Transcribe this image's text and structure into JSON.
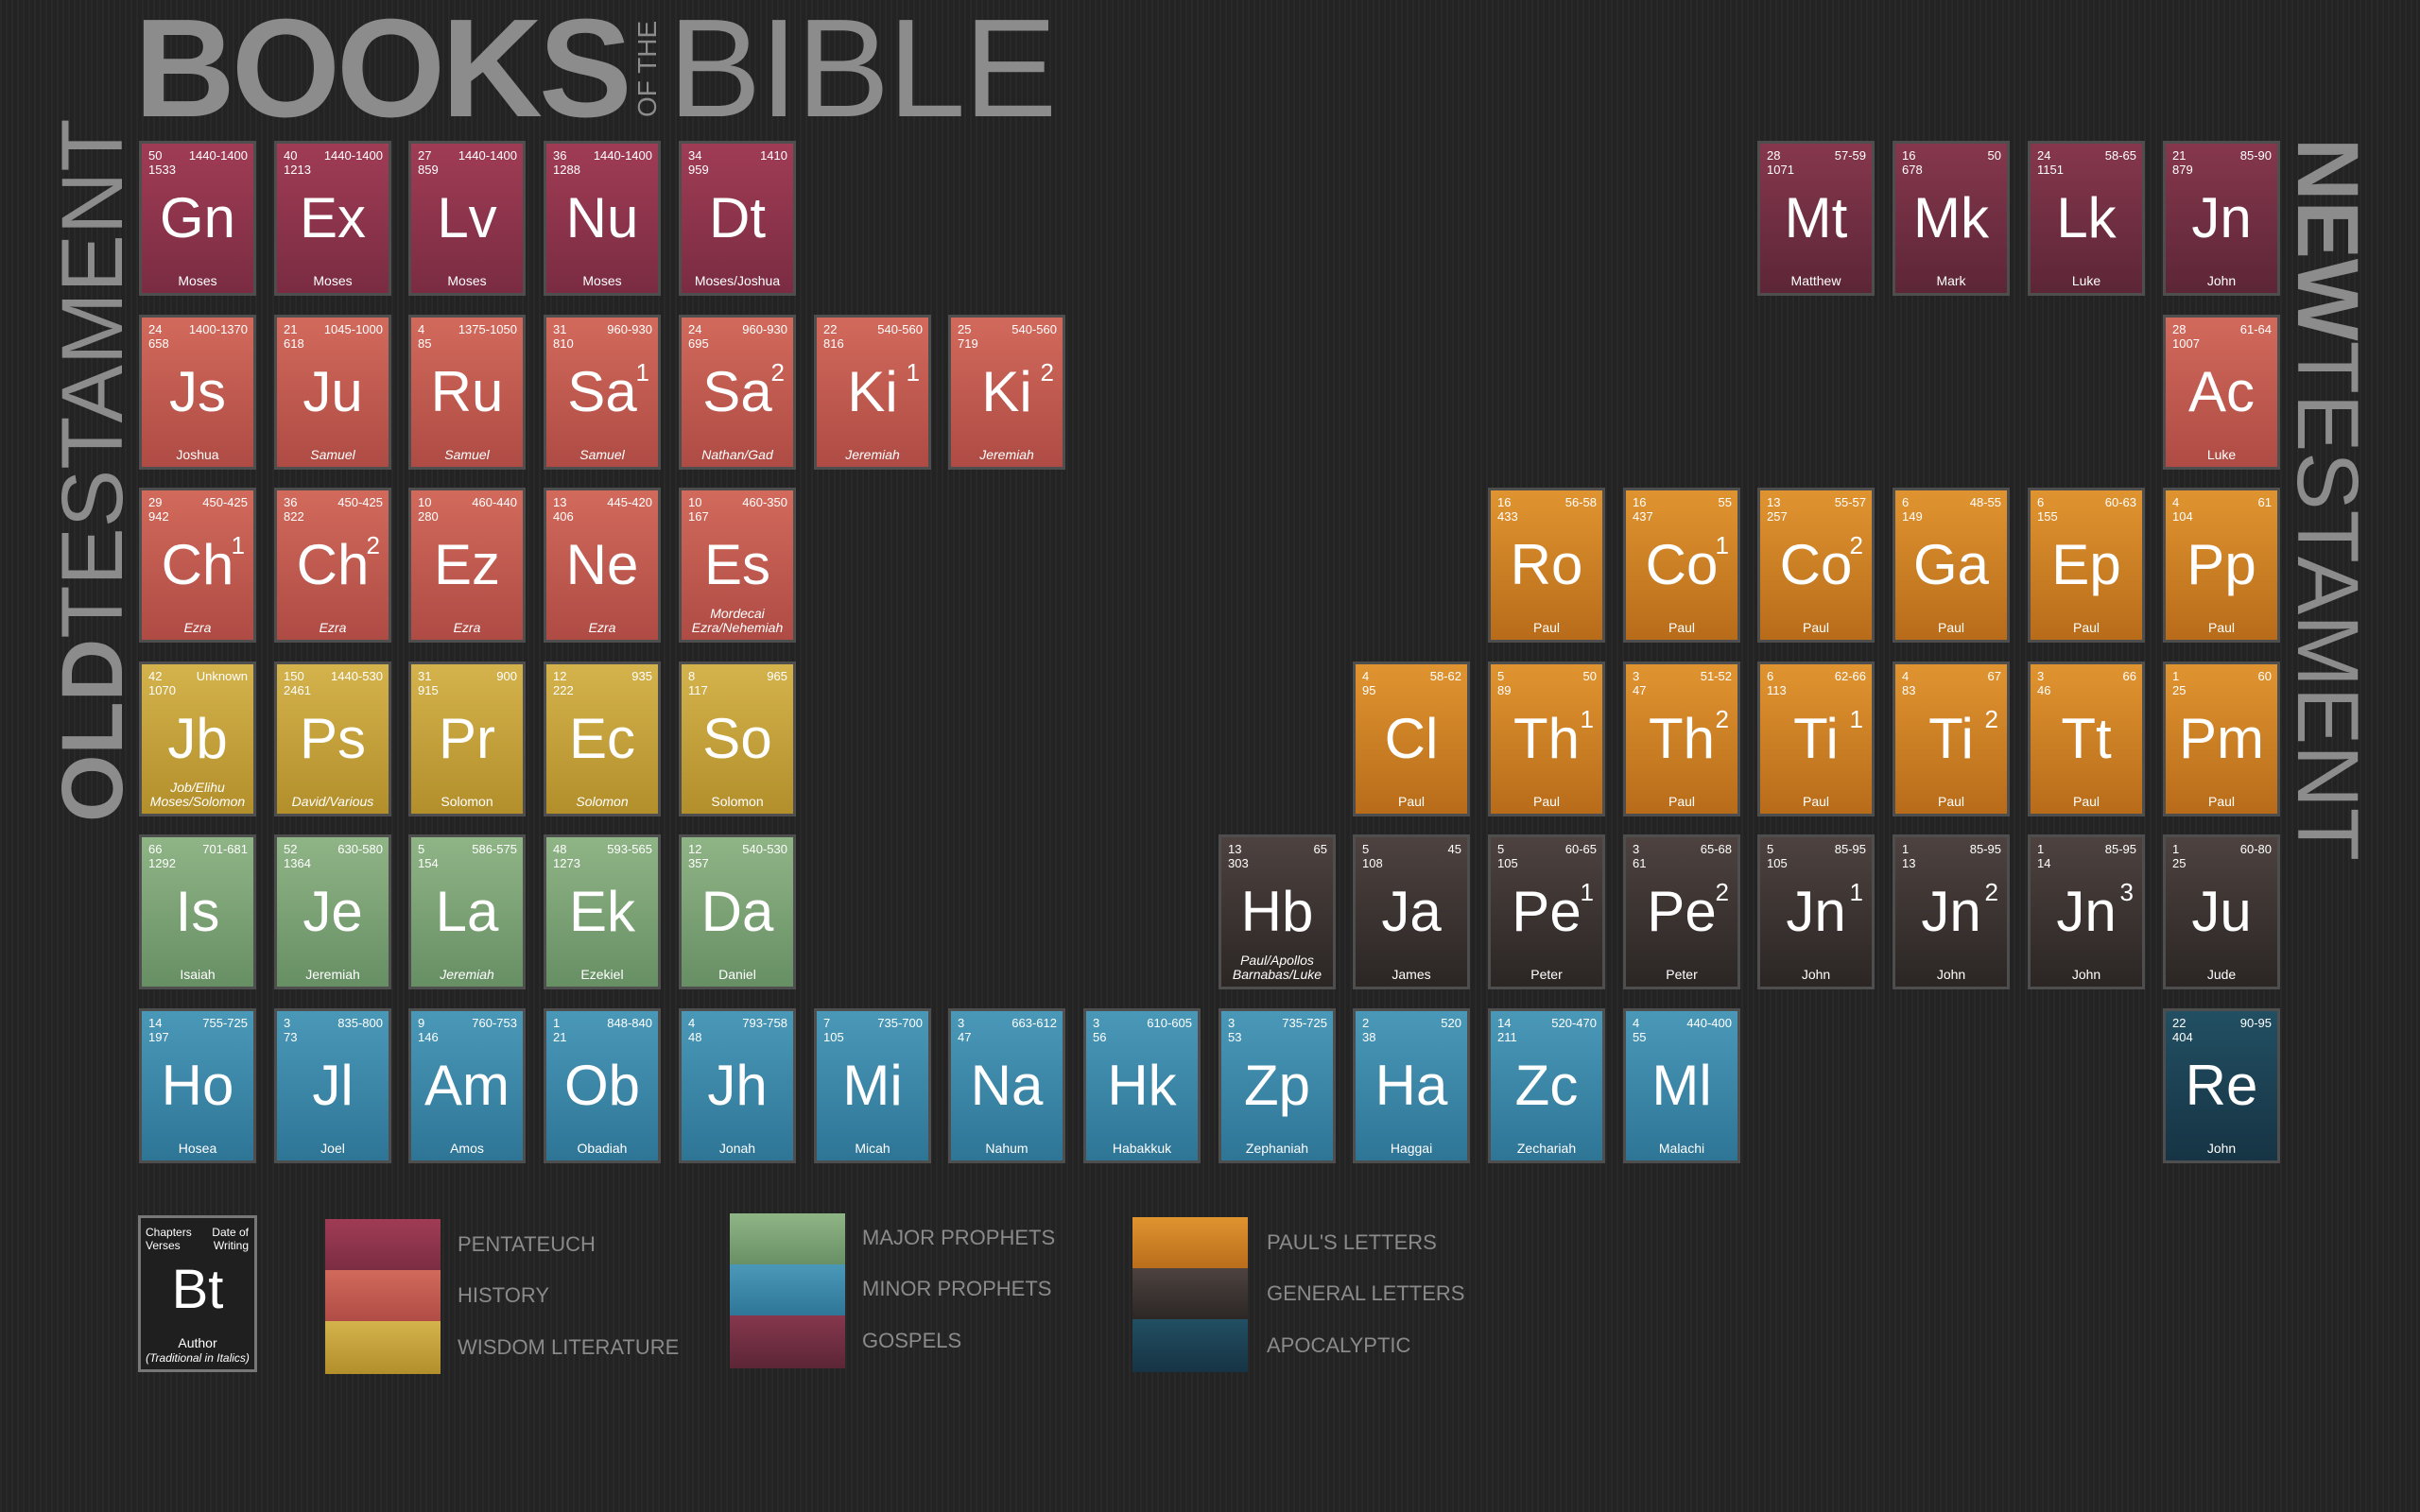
{
  "title": {
    "books": "BOOKS",
    "of_the": "OF THE",
    "bible": "BIBLE"
  },
  "side": {
    "old_bold": "OLD",
    "old_rest": "TESTAMENT",
    "new_bold": "NEW",
    "new_rest": "TESTAMENT"
  },
  "colors": {
    "pentateuch": "#8f3550",
    "history": "#c65b50",
    "wisdom": "#c8a23e",
    "major_prophets": "#7ea676",
    "minor_prophets": "#3a88aa",
    "gospels": "#6f2e42",
    "pauls_letters": "#cc8024",
    "general_letters": "#3a3230",
    "apocalyptic": "#1c4254"
  },
  "books": [
    {
      "sym": "Gn",
      "ch": "50",
      "vs": "1533",
      "date": "1440-1400",
      "author": "Moses",
      "cat": "pent"
    },
    {
      "sym": "Ex",
      "ch": "40",
      "vs": "1213",
      "date": "1440-1400",
      "author": "Moses",
      "cat": "pent"
    },
    {
      "sym": "Lv",
      "ch": "27",
      "vs": "859",
      "date": "1440-1400",
      "author": "Moses",
      "cat": "pent"
    },
    {
      "sym": "Nu",
      "ch": "36",
      "vs": "1288",
      "date": "1440-1400",
      "author": "Moses",
      "cat": "pent"
    },
    {
      "sym": "Dt",
      "ch": "34",
      "vs": "959",
      "date": "1410",
      "author": "Moses/Joshua",
      "cat": "pent"
    },
    {
      "sym": "Js",
      "ch": "24",
      "vs": "658",
      "date": "1400-1370",
      "author": "Joshua",
      "cat": "hist"
    },
    {
      "sym": "Ju",
      "ch": "21",
      "vs": "618",
      "date": "1045-1000",
      "author": "Samuel",
      "cat": "hist",
      "italic": true
    },
    {
      "sym": "Ru",
      "ch": "4",
      "vs": "85",
      "date": "1375-1050",
      "author": "Samuel",
      "cat": "hist",
      "italic": true
    },
    {
      "sym": "Sa",
      "sup": "1",
      "ch": "31",
      "vs": "810",
      "date": "960-930",
      "author": "Samuel",
      "cat": "hist",
      "italic": true
    },
    {
      "sym": "Sa",
      "sup": "2",
      "ch": "24",
      "vs": "695",
      "date": "960-930",
      "author": "Nathan/Gad",
      "cat": "hist",
      "italic": true
    },
    {
      "sym": "Ki",
      "sup": "1",
      "ch": "22",
      "vs": "816",
      "date": "540-560",
      "author": "Jeremiah",
      "cat": "hist",
      "italic": true
    },
    {
      "sym": "Ki",
      "sup": "2",
      "ch": "25",
      "vs": "719",
      "date": "540-560",
      "author": "Jeremiah",
      "cat": "hist",
      "italic": true
    },
    {
      "sym": "Ch",
      "sup": "1",
      "ch": "29",
      "vs": "942",
      "date": "450-425",
      "author": "Ezra",
      "cat": "hist",
      "italic": true
    },
    {
      "sym": "Ch",
      "sup": "2",
      "ch": "36",
      "vs": "822",
      "date": "450-425",
      "author": "Ezra",
      "cat": "hist",
      "italic": true
    },
    {
      "sym": "Ez",
      "ch": "10",
      "vs": "280",
      "date": "460-440",
      "author": "Ezra",
      "cat": "hist",
      "italic": true
    },
    {
      "sym": "Ne",
      "ch": "13",
      "vs": "406",
      "date": "445-420",
      "author": "Ezra",
      "cat": "hist",
      "italic": true
    },
    {
      "sym": "Es",
      "ch": "10",
      "vs": "167",
      "date": "460-350",
      "author": "Mordecai\nEzra/Nehemiah",
      "cat": "hist",
      "italic": true
    },
    {
      "sym": "Jb",
      "ch": "42",
      "vs": "1070",
      "date": "Unknown",
      "author": "Job/Elihu\nMoses/Solomon",
      "cat": "wis",
      "italic": true
    },
    {
      "sym": "Ps",
      "ch": "150",
      "vs": "2461",
      "date": "1440-530",
      "author": "David/Various",
      "cat": "wis",
      "italic": true
    },
    {
      "sym": "Pr",
      "ch": "31",
      "vs": "915",
      "date": "900",
      "author": "Solomon",
      "cat": "wis"
    },
    {
      "sym": "Ec",
      "ch": "12",
      "vs": "222",
      "date": "935",
      "author": "Solomon",
      "cat": "wis",
      "italic": true
    },
    {
      "sym": "So",
      "ch": "8",
      "vs": "117",
      "date": "965",
      "author": "Solomon",
      "cat": "wis"
    },
    {
      "sym": "Is",
      "ch": "66",
      "vs": "1292",
      "date": "701-681",
      "author": "Isaiah",
      "cat": "maj"
    },
    {
      "sym": "Je",
      "ch": "52",
      "vs": "1364",
      "date": "630-580",
      "author": "Jeremiah",
      "cat": "maj"
    },
    {
      "sym": "La",
      "ch": "5",
      "vs": "154",
      "date": "586-575",
      "author": "Jeremiah",
      "cat": "maj",
      "italic": true
    },
    {
      "sym": "Ek",
      "ch": "48",
      "vs": "1273",
      "date": "593-565",
      "author": "Ezekiel",
      "cat": "maj"
    },
    {
      "sym": "Da",
      "ch": "12",
      "vs": "357",
      "date": "540-530",
      "author": "Daniel",
      "cat": "maj"
    },
    {
      "sym": "Ho",
      "ch": "14",
      "vs": "197",
      "date": "755-725",
      "author": "Hosea",
      "cat": "min"
    },
    {
      "sym": "Jl",
      "ch": "3",
      "vs": "73",
      "date": "835-800",
      "author": "Joel",
      "cat": "min"
    },
    {
      "sym": "Am",
      "ch": "9",
      "vs": "146",
      "date": "760-753",
      "author": "Amos",
      "cat": "min"
    },
    {
      "sym": "Ob",
      "ch": "1",
      "vs": "21",
      "date": "848-840",
      "author": "Obadiah",
      "cat": "min"
    },
    {
      "sym": "Jh",
      "ch": "4",
      "vs": "48",
      "date": "793-758",
      "author": "Jonah",
      "cat": "min"
    },
    {
      "sym": "Mi",
      "ch": "7",
      "vs": "105",
      "date": "735-700",
      "author": "Micah",
      "cat": "min"
    },
    {
      "sym": "Na",
      "ch": "3",
      "vs": "47",
      "date": "663-612",
      "author": "Nahum",
      "cat": "min"
    },
    {
      "sym": "Hk",
      "ch": "3",
      "vs": "56",
      "date": "610-605",
      "author": "Habakkuk",
      "cat": "min"
    },
    {
      "sym": "Zp",
      "ch": "3",
      "vs": "53",
      "date": "735-725",
      "author": "Zephaniah",
      "cat": "min"
    },
    {
      "sym": "Ha",
      "ch": "2",
      "vs": "38",
      "date": "520",
      "author": "Haggai",
      "cat": "min"
    },
    {
      "sym": "Zc",
      "ch": "14",
      "vs": "211",
      "date": "520-470",
      "author": "Zechariah",
      "cat": "min"
    },
    {
      "sym": "Ml",
      "ch": "4",
      "vs": "55",
      "date": "440-400",
      "author": "Malachi",
      "cat": "min"
    },
    {
      "sym": "Mt",
      "ch": "28",
      "vs": "1071",
      "date": "57-59",
      "author": "Matthew",
      "cat": "gos"
    },
    {
      "sym": "Mk",
      "ch": "16",
      "vs": "678",
      "date": "50",
      "author": "Mark",
      "cat": "gos"
    },
    {
      "sym": "Lk",
      "ch": "24",
      "vs": "1151",
      "date": "58-65",
      "author": "Luke",
      "cat": "gos"
    },
    {
      "sym": "Jn",
      "ch": "21",
      "vs": "879",
      "date": "85-90",
      "author": "John",
      "cat": "gos"
    },
    {
      "sym": "Ac",
      "ch": "28",
      "vs": "1007",
      "date": "61-64",
      "author": "Luke",
      "cat": "hist"
    },
    {
      "sym": "Ro",
      "ch": "16",
      "vs": "433",
      "date": "56-58",
      "author": "Paul",
      "cat": "paul"
    },
    {
      "sym": "Co",
      "sup": "1",
      "ch": "16",
      "vs": "437",
      "date": "55",
      "author": "Paul",
      "cat": "paul"
    },
    {
      "sym": "Co",
      "sup": "2",
      "ch": "13",
      "vs": "257",
      "date": "55-57",
      "author": "Paul",
      "cat": "paul"
    },
    {
      "sym": "Ga",
      "ch": "6",
      "vs": "149",
      "date": "48-55",
      "author": "Paul",
      "cat": "paul"
    },
    {
      "sym": "Ep",
      "ch": "6",
      "vs": "155",
      "date": "60-63",
      "author": "Paul",
      "cat": "paul"
    },
    {
      "sym": "Pp",
      "ch": "4",
      "vs": "104",
      "date": "61",
      "author": "Paul",
      "cat": "paul"
    },
    {
      "sym": "Cl",
      "ch": "4",
      "vs": "95",
      "date": "58-62",
      "author": "Paul",
      "cat": "paul"
    },
    {
      "sym": "Th",
      "sup": "1",
      "ch": "5",
      "vs": "89",
      "date": "50",
      "author": "Paul",
      "cat": "paul"
    },
    {
      "sym": "Th",
      "sup": "2",
      "ch": "3",
      "vs": "47",
      "date": "51-52",
      "author": "Paul",
      "cat": "paul"
    },
    {
      "sym": "Ti",
      "sup": "1",
      "ch": "6",
      "vs": "113",
      "date": "62-66",
      "author": "Paul",
      "cat": "paul"
    },
    {
      "sym": "Ti",
      "sup": "2",
      "ch": "4",
      "vs": "83",
      "date": "67",
      "author": "Paul",
      "cat": "paul"
    },
    {
      "sym": "Tt",
      "ch": "3",
      "vs": "46",
      "date": "66",
      "author": "Paul",
      "cat": "paul"
    },
    {
      "sym": "Pm",
      "ch": "1",
      "vs": "25",
      "date": "60",
      "author": "Paul",
      "cat": "paul"
    },
    {
      "sym": "Hb",
      "ch": "13",
      "vs": "303",
      "date": "65",
      "author": "Paul/Apollos\nBarnabas/Luke",
      "cat": "gen",
      "italic": true
    },
    {
      "sym": "Ja",
      "ch": "5",
      "vs": "108",
      "date": "45",
      "author": "James",
      "cat": "gen"
    },
    {
      "sym": "Pe",
      "sup": "1",
      "ch": "5",
      "vs": "105",
      "date": "60-65",
      "author": "Peter",
      "cat": "gen"
    },
    {
      "sym": "Pe",
      "sup": "2",
      "ch": "3",
      "vs": "61",
      "date": "65-68",
      "author": "Peter",
      "cat": "gen"
    },
    {
      "sym": "Jn",
      "sup": "1",
      "ch": "5",
      "vs": "105",
      "date": "85-95",
      "author": "John",
      "cat": "gen"
    },
    {
      "sym": "Jn",
      "sup": "2",
      "ch": "1",
      "vs": "13",
      "date": "85-95",
      "author": "John",
      "cat": "gen"
    },
    {
      "sym": "Jn",
      "sup": "3",
      "ch": "1",
      "vs": "14",
      "date": "85-95",
      "author": "John",
      "cat": "gen"
    },
    {
      "sym": "Ju",
      "ch": "1",
      "vs": "25",
      "date": "60-80",
      "author": "Jude",
      "cat": "gen"
    },
    {
      "sym": "Re",
      "ch": "22",
      "vs": "404",
      "date": "90-95",
      "author": "John",
      "cat": "apoc"
    }
  ],
  "key": {
    "chapters": "Chapters",
    "verses": "Verses",
    "date_of": "Date of",
    "writing": "Writing",
    "symbol": "Bt",
    "author": "Author",
    "note": "(Traditional in Italics)"
  },
  "legend": {
    "pentateuch": "PENTATEUCH",
    "history": "HISTORY",
    "wisdom": "WISDOM LITERATURE",
    "major_prophets": "MAJOR PROPHETS",
    "minor_prophets": "MINOR PROPHETS",
    "gospels": "GOSPELS",
    "pauls_letters": "PAUL'S LETTERS",
    "general_letters": "GENERAL LETTERS",
    "apocalyptic": "APOCALYPTIC"
  }
}
